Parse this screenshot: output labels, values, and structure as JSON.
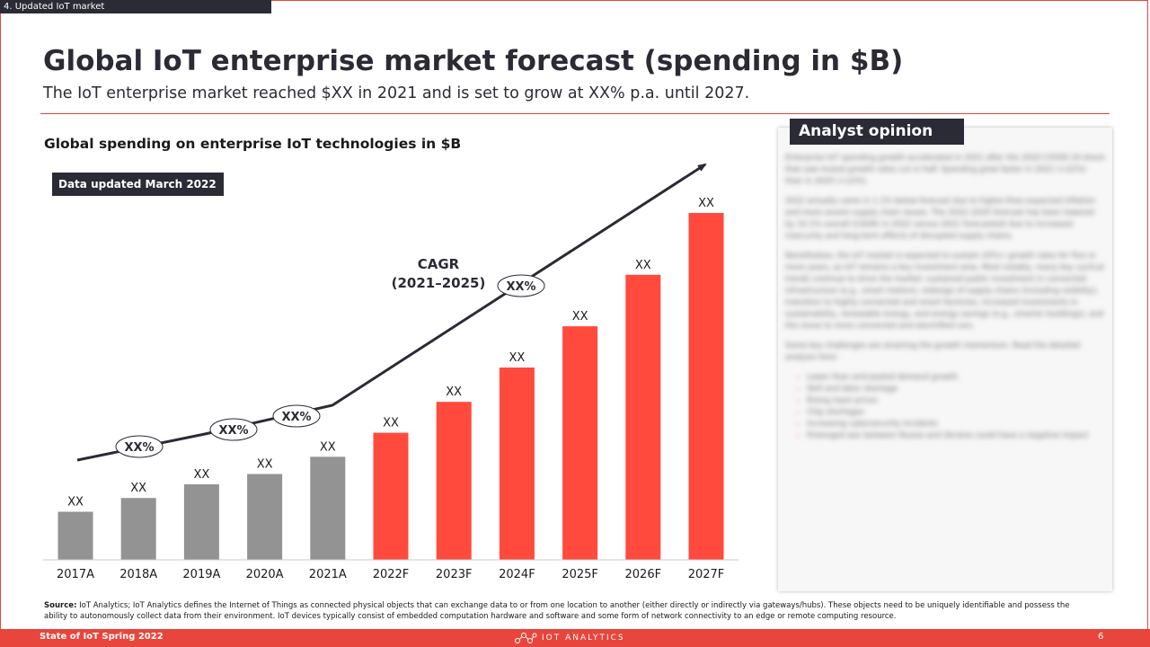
{
  "section_label": "4. Updated IoT market",
  "title": "Global IoT enterprise market forecast (spending in $B)",
  "subtitle": "The IoT enterprise  market reached $XX in 2021 and is set to grow at XX% p.a. until 2027.",
  "data_updated": "Data updated March 2022",
  "cagr": {
    "label_line1": "CAGR",
    "label_line2": "(2021–2025)"
  },
  "chart_data": {
    "type": "bar",
    "title": "Global spending on enterprise IoT technologies in $B",
    "categories": [
      "2017A",
      "2018A",
      "2019A",
      "2020A",
      "2021A",
      "2022F",
      "2023F",
      "2024F",
      "2025F",
      "2026F",
      "2027F"
    ],
    "values": [
      14,
      18,
      22,
      25,
      30,
      37,
      46,
      56,
      68,
      83,
      101
    ],
    "data_labels": [
      "XX",
      "XX",
      "XX",
      "XX",
      "XX",
      "XX",
      "XX",
      "XX",
      "XX",
      "XX",
      "XX"
    ],
    "series_kind": [
      "actual",
      "actual",
      "actual",
      "actual",
      "actual",
      "forecast",
      "forecast",
      "forecast",
      "forecast",
      "forecast",
      "forecast"
    ],
    "colors": {
      "actual": "#939393",
      "forecast": "#ff4a3d",
      "arrow": "#2b2b35"
    },
    "growth_bubbles": [
      "XX%",
      "XX%",
      "XX%",
      "XX%"
    ],
    "ylim": [
      0,
      105
    ],
    "xlabel": "",
    "ylabel": "",
    "grid": false,
    "legend": "none"
  },
  "analyst": {
    "header": "Analyst opinion",
    "paragraphs": [
      "Enterprise IoT spending growth accelerated in 2021 after the 2020 COVID-19 shock that saw muted growth rates cut in half. Spending grew faster in 2021 (+22%) than in 2020 (+12%).",
      "2022 actually came in 1.1% below forecast due to higher-than-expected inflation and more severe supply chain issues. The 2022–2025 forecast has been lowered by 10.1% overall (CAGR) in 2022 versus 2021 forecasted) due to increased insecurity and long-term effects of disrupted supply chains.",
      "Nonetheless, the IoT market is expected to sustain 20%+ growth rates for five or more years, as IoT remains a key investment area. Most notably, many key cyclical trends continue to drive the market: sustained public investment in connected infrastructure (e.g., smart meters), redesign of supply chains (including visibility), transition to highly connected and smart factories, increased investments in sustainability, renewable energy, and energy savings (e.g., smarter buildings), and the move to more connected and electrified cars.",
      "Some key challenges are straining the growth momentum. Read the detailed analysis here:"
    ],
    "bullets": [
      "Lower than anticipated demand growth",
      "Skill and labor shortage",
      "Rising input prices",
      "Chip shortages",
      "Increasing cybersecurity incidents",
      "Prolonged war between Russia and Ukraine could have a negative impact"
    ]
  },
  "source": {
    "label": "Source:",
    "text": " IoT Analytics; IoT Analytics defines the Internet of Things as connected physical objects that can exchange data to or from one location to another (either directly or indirectly via gateways/hubs). These objects need to be uniquely identifiable and possess the ability to autonomously collect data from their environment. IoT devices typically consist of embedded computation hardware and software and some form of network connectivity to an edge or remote computing resource."
  },
  "footer": {
    "left": "State of IoT Spring 2022",
    "logo": "IOT ANALYTICS",
    "page": "6"
  }
}
